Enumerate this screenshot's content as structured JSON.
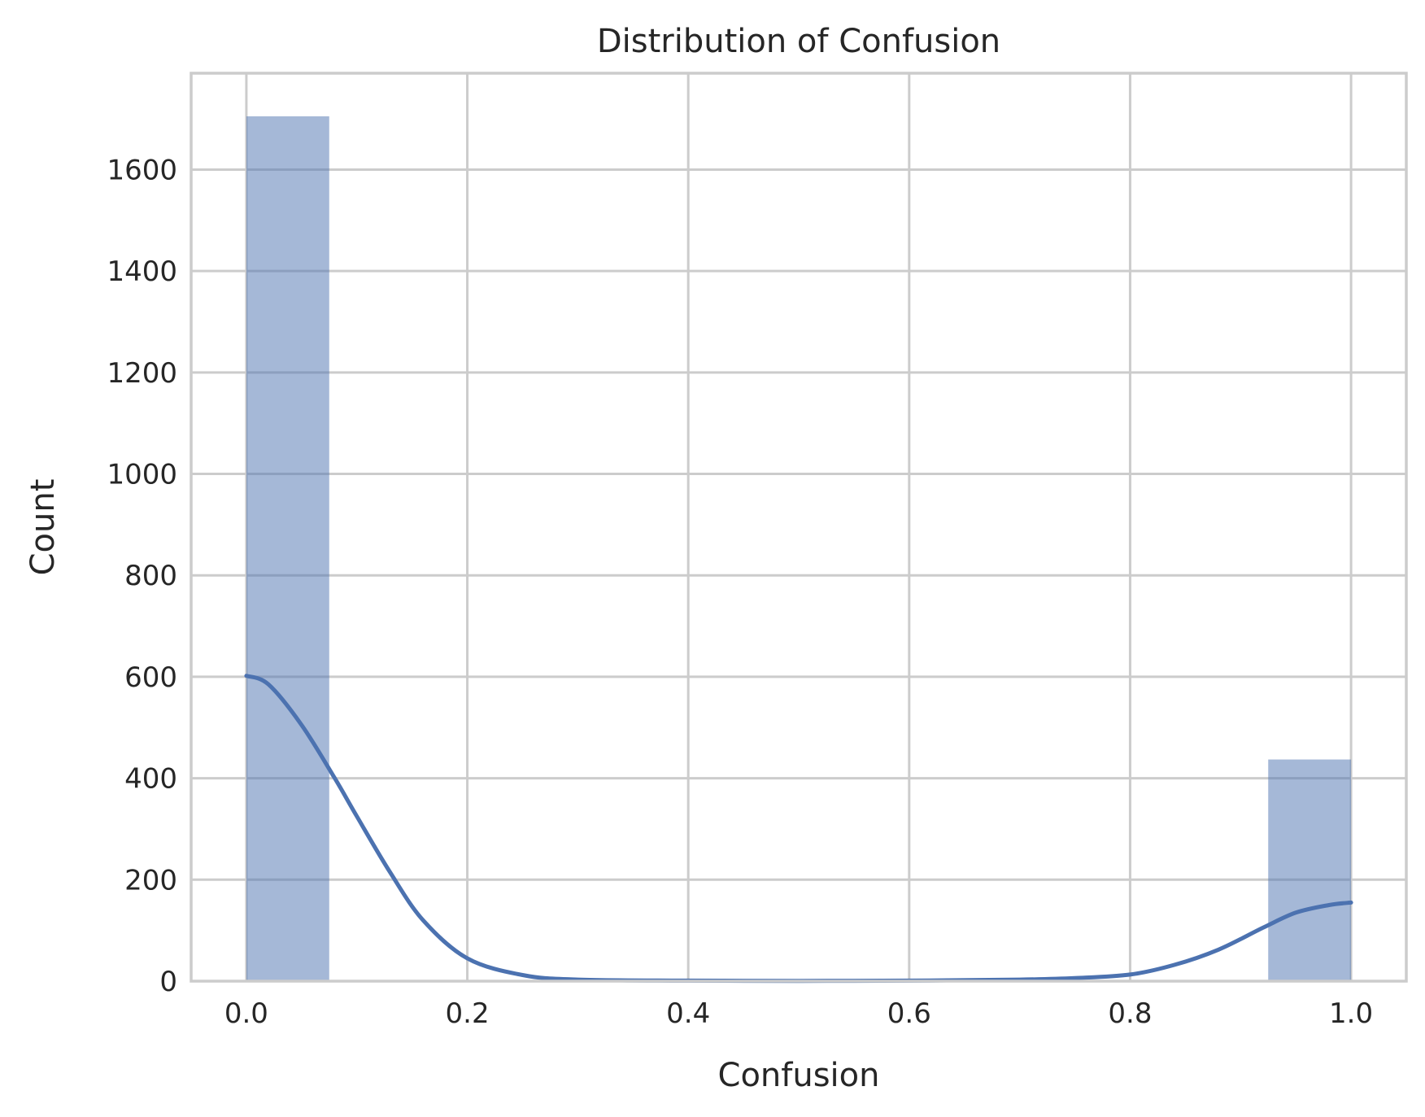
{
  "chart_data": {
    "type": "bar",
    "subtype": "histogram",
    "title": "Distribution of Confusion",
    "xlabel": "Confusion",
    "ylabel": "Count",
    "xlim": [
      -0.05,
      1.05
    ],
    "ylim": [
      0,
      1790
    ],
    "xticks": [
      "0.0",
      "0.2",
      "0.4",
      "0.6",
      "0.8",
      "1.0"
    ],
    "yticks": [
      "0",
      "200",
      "400",
      "600",
      "800",
      "1000",
      "1200",
      "1400",
      "1600"
    ],
    "grid": true,
    "bins": [
      {
        "x0": 0.0,
        "x1": 0.075,
        "count": 1705
      },
      {
        "x0": 0.925,
        "x1": 1.0,
        "count": 437
      }
    ],
    "kde": {
      "x": [
        0.0,
        0.02,
        0.05,
        0.08,
        0.1,
        0.13,
        0.16,
        0.2,
        0.25,
        0.3,
        0.4,
        0.5,
        0.6,
        0.7,
        0.75,
        0.8,
        0.84,
        0.88,
        0.92,
        0.95,
        0.98,
        1.0
      ],
      "y": [
        602,
        585,
        505,
        400,
        325,
        215,
        120,
        45,
        12,
        3,
        1,
        0.5,
        1,
        3,
        6,
        13,
        32,
        62,
        105,
        135,
        150,
        155
      ]
    },
    "colors": {
      "bar": "#4c72b0",
      "bar_opacity": 0.5,
      "kde": "#4c72b0",
      "grid": "#cccccc",
      "text": "#262626"
    }
  }
}
